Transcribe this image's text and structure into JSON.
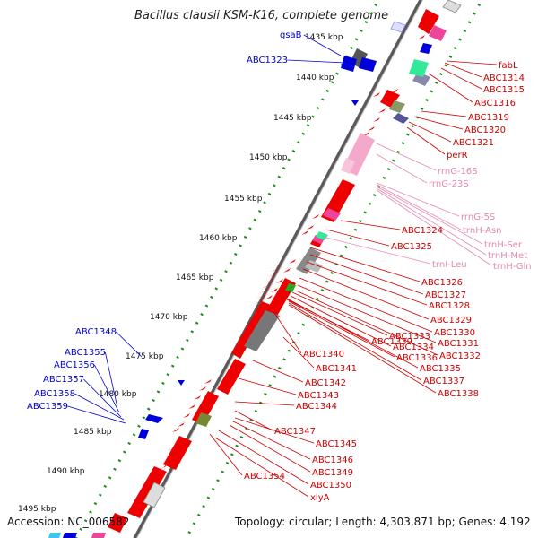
{
  "title": "Bacillus clausii KSM-K16, complete genome",
  "footer": {
    "accession": "Accession: NC_006582",
    "topology": "Topology: circular; Length: 4,303,871 bp; Genes: 4,192"
  },
  "colors": {
    "backbone": "#8c8c8c",
    "tick": "#1c8a1c",
    "cds": "#ee0000",
    "rrna": "#f4a8cc",
    "trna": "#ee4499",
    "left_label": "#0000cc",
    "right_label_red": "#cc0000",
    "right_label_pink": "#e38ab0",
    "gray_feature": "#888888",
    "blue_feature": "#0000dd"
  },
  "kbp_ticks": [
    {
      "label": "1435 kbp"
    },
    {
      "label": "1440 kbp"
    },
    {
      "label": "1445 kbp"
    },
    {
      "label": "1450 kbp"
    },
    {
      "label": "1455 kbp"
    },
    {
      "label": "1460 kbp"
    },
    {
      "label": "1465 kbp"
    },
    {
      "label": "1470 kbp"
    },
    {
      "label": "1475 kbp"
    },
    {
      "label": "1480 kbp"
    },
    {
      "label": "1485 kbp"
    },
    {
      "label": "1490 kbp"
    },
    {
      "label": "1495 kbp"
    }
  ],
  "left_labels": [
    "gsaB",
    "ABC1323",
    "ABC1348",
    "ABC1355",
    "ABC1356",
    "ABC1357",
    "ABC1358",
    "ABC1359"
  ],
  "right_labels": [
    {
      "text": "fabL",
      "kind": "red"
    },
    {
      "text": "ABC1314",
      "kind": "red"
    },
    {
      "text": "ABC1315",
      "kind": "red"
    },
    {
      "text": "ABC1316",
      "kind": "red"
    },
    {
      "text": "ABC1319",
      "kind": "red"
    },
    {
      "text": "ABC1320",
      "kind": "red"
    },
    {
      "text": "ABC1321",
      "kind": "red"
    },
    {
      "text": "perR",
      "kind": "red"
    },
    {
      "text": "rrnG-16S",
      "kind": "pink"
    },
    {
      "text": "rrnG-23S",
      "kind": "pink"
    },
    {
      "text": "rrnG-5S",
      "kind": "pink"
    },
    {
      "text": "trnH-Asn",
      "kind": "pink"
    },
    {
      "text": "trnH-Ser",
      "kind": "pink"
    },
    {
      "text": "trnH-Met",
      "kind": "pink"
    },
    {
      "text": "trnH-Gln",
      "kind": "pink"
    },
    {
      "text": "ABC1324",
      "kind": "red"
    },
    {
      "text": "ABC1325",
      "kind": "red"
    },
    {
      "text": "trnI-Leu",
      "kind": "pink"
    },
    {
      "text": "ABC1326",
      "kind": "red"
    },
    {
      "text": "ABC1327",
      "kind": "red"
    },
    {
      "text": "ABC1328",
      "kind": "red"
    },
    {
      "text": "ABC1329",
      "kind": "red"
    },
    {
      "text": "ABC1330",
      "kind": "red"
    },
    {
      "text": "ABC1331",
      "kind": "red"
    },
    {
      "text": "ABC1332",
      "kind": "red"
    },
    {
      "text": "ABC1333",
      "kind": "red"
    },
    {
      "text": "ABC1334",
      "kind": "red"
    },
    {
      "text": "ABC1335",
      "kind": "red"
    },
    {
      "text": "ABC1336",
      "kind": "red"
    },
    {
      "text": "ABC1337",
      "kind": "red"
    },
    {
      "text": "ABC1338",
      "kind": "red"
    },
    {
      "text": "ABC1339",
      "kind": "red"
    },
    {
      "text": "ABC1340",
      "kind": "red"
    },
    {
      "text": "ABC1341",
      "kind": "red"
    },
    {
      "text": "ABC1342",
      "kind": "red"
    },
    {
      "text": "ABC1343",
      "kind": "red"
    },
    {
      "text": "ABC1344",
      "kind": "red"
    },
    {
      "text": "ABC1347",
      "kind": "red"
    },
    {
      "text": "ABC1345",
      "kind": "red"
    },
    {
      "text": "ABC1346",
      "kind": "red"
    },
    {
      "text": "ABC1349",
      "kind": "red"
    },
    {
      "text": "ABC1354",
      "kind": "red"
    },
    {
      "text": "ABC1350",
      "kind": "red"
    },
    {
      "text": "xlyA",
      "kind": "red"
    }
  ]
}
